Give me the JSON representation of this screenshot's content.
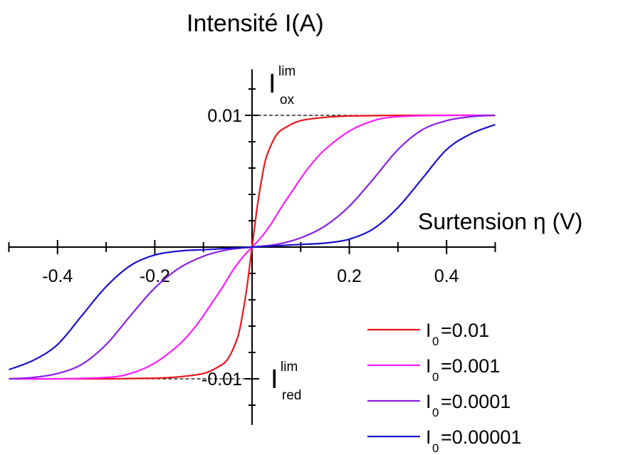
{
  "chart_data": {
    "type": "line",
    "title": "Intensité I(A)",
    "xlabel": "Surtension η (V)",
    "ylabel": "Intensité I(A)",
    "xlim": [
      -0.5,
      0.5
    ],
    "ylim": [
      -0.0135,
      0.0135
    ],
    "x_ticks": [
      {
        "value": -0.4,
        "label": "-0.4"
      },
      {
        "value": -0.2,
        "label": "-0.2"
      },
      {
        "value": 0.2,
        "label": "0.2"
      },
      {
        "value": 0.4,
        "label": "0.4"
      }
    ],
    "y_ticks": [
      {
        "value": 0.01,
        "label": "0.01"
      },
      {
        "value": -0.01,
        "label": "-0.01"
      }
    ],
    "limits": {
      "ox": {
        "value": 0.01,
        "base": "I",
        "sup": "lim",
        "sub": "ox"
      },
      "red": {
        "value": -0.01,
        "base": "I",
        "sup": "lim",
        "sub": "red"
      }
    },
    "grid": false,
    "legend_position": "bottom-right",
    "series": [
      {
        "name": "I0=0.01",
        "legend_base": "I",
        "legend_sub": "0",
        "legend_value": "=0.01",
        "color": "#e8161b",
        "x": [
          -0.5,
          -0.4,
          -0.3,
          -0.2,
          -0.15,
          -0.1,
          -0.07,
          -0.05,
          -0.03,
          -0.02,
          -0.01,
          0,
          0.01,
          0.02,
          0.03,
          0.05,
          0.07,
          0.1,
          0.15,
          0.2,
          0.3,
          0.4,
          0.5
        ],
        "y": [
          -0.01,
          -0.01,
          -0.01,
          -0.00995,
          -0.00985,
          -0.0096,
          -0.0091,
          -0.0085,
          -0.0069,
          -0.0052,
          -0.0029,
          0,
          0.0029,
          0.0052,
          0.0069,
          0.0085,
          0.0091,
          0.0096,
          0.00985,
          0.00995,
          0.01,
          0.01,
          0.01
        ]
      },
      {
        "name": "I0=0.001",
        "legend_base": "I",
        "legend_sub": "0",
        "legend_value": "=0.001",
        "color": "#ff1aff",
        "x": [
          -0.5,
          -0.4,
          -0.3,
          -0.25,
          -0.2,
          -0.15,
          -0.12,
          -0.1,
          -0.08,
          -0.06,
          -0.04,
          -0.02,
          0,
          0.02,
          0.04,
          0.06,
          0.08,
          0.1,
          0.12,
          0.15,
          0.2,
          0.25,
          0.3,
          0.4,
          0.5
        ],
        "y": [
          -0.01,
          -0.01,
          -0.0099,
          -0.0096,
          -0.0088,
          -0.0074,
          -0.0062,
          -0.0052,
          -0.0041,
          -0.003,
          -0.0018,
          -0.0008,
          0,
          0.0008,
          0.0018,
          0.003,
          0.0041,
          0.0052,
          0.0062,
          0.0074,
          0.0088,
          0.0096,
          0.0099,
          0.01,
          0.01
        ]
      },
      {
        "name": "I0=0.0001",
        "legend_base": "I",
        "legend_sub": "0",
        "legend_value": "=0.0001",
        "color": "#8a1ee6",
        "x": [
          -0.5,
          -0.45,
          -0.4,
          -0.35,
          -0.3,
          -0.25,
          -0.2,
          -0.15,
          -0.1,
          -0.05,
          0,
          0.05,
          0.1,
          0.15,
          0.2,
          0.25,
          0.3,
          0.35,
          0.4,
          0.45,
          0.5
        ],
        "y": [
          -0.01,
          -0.0099,
          -0.0096,
          -0.0089,
          -0.0074,
          -0.0052,
          -0.0031,
          -0.0016,
          -0.0007,
          -0.0002,
          0,
          0.0002,
          0.0007,
          0.0016,
          0.0031,
          0.0052,
          0.0074,
          0.0089,
          0.0096,
          0.0099,
          0.01
        ]
      },
      {
        "name": "I0=0.00001",
        "legend_base": "I",
        "legend_sub": "0",
        "legend_value": "=0.00001",
        "color": "#1a10cc",
        "x": [
          -0.5,
          -0.45,
          -0.4,
          -0.35,
          -0.3,
          -0.25,
          -0.2,
          -0.15,
          -0.1,
          -0.05,
          0,
          0.05,
          0.1,
          0.15,
          0.2,
          0.25,
          0.3,
          0.35,
          0.4,
          0.45,
          0.5
        ],
        "y": [
          -0.0093,
          -0.0086,
          -0.0074,
          -0.0052,
          -0.003,
          -0.0014,
          -0.0006,
          -0.0003,
          -0.0002,
          -0.0001,
          0,
          0.0001,
          0.0002,
          0.0003,
          0.0006,
          0.0014,
          0.003,
          0.0052,
          0.0074,
          0.0086,
          0.0093
        ]
      }
    ]
  }
}
